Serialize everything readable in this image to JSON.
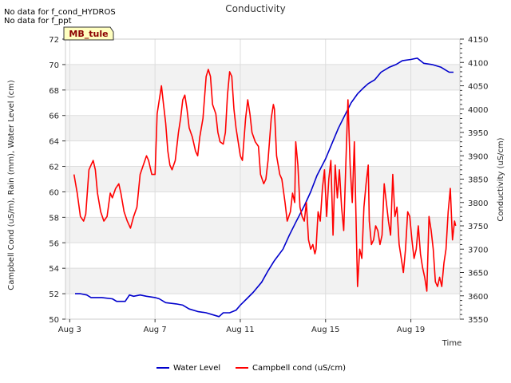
{
  "notes": [
    "No data for f_cond_HYDROS",
    "No data for f_ppt"
  ],
  "site_label": "MB_tule",
  "chart_data": {
    "type": "line",
    "title": "Conductivity",
    "xlabel": "Time",
    "ylabel_left": "Campbell Cond (uS/m), Rain (mm), Water Level (cm)",
    "ylabel_right": "Conductivity (uS/cm)",
    "xlim": [
      2.8,
      21.3
    ],
    "x_ticks": [
      {
        "x": 3,
        "label": "Aug 3"
      },
      {
        "x": 7,
        "label": "Aug 7"
      },
      {
        "x": 11,
        "label": "Aug 11"
      },
      {
        "x": 15,
        "label": "Aug 15"
      },
      {
        "x": 19,
        "label": "Aug 19"
      }
    ],
    "ylim_left": [
      50,
      72
    ],
    "y_ticks_left": [
      50,
      52,
      54,
      56,
      58,
      60,
      62,
      64,
      66,
      68,
      70,
      72
    ],
    "ylim_right": [
      3550,
      4150
    ],
    "y_ticks_right": [
      3550,
      3600,
      3650,
      3700,
      3750,
      3800,
      3850,
      3900,
      3950,
      4000,
      4050,
      4100,
      4150
    ],
    "grid": true,
    "legend_position": "bottom",
    "series": [
      {
        "name": "Water Level",
        "axis": "left",
        "color": "#0000cc",
        "points": [
          [
            3.25,
            52.0
          ],
          [
            3.5,
            52.0
          ],
          [
            3.8,
            51.9
          ],
          [
            4.0,
            51.7
          ],
          [
            4.5,
            51.7
          ],
          [
            5.0,
            51.6
          ],
          [
            5.2,
            51.4
          ],
          [
            5.6,
            51.4
          ],
          [
            5.8,
            51.9
          ],
          [
            6.0,
            51.8
          ],
          [
            6.3,
            51.9
          ],
          [
            6.6,
            51.8
          ],
          [
            7.0,
            51.7
          ],
          [
            7.2,
            51.6
          ],
          [
            7.5,
            51.3
          ],
          [
            8.0,
            51.2
          ],
          [
            8.3,
            51.1
          ],
          [
            8.6,
            50.8
          ],
          [
            9.0,
            50.6
          ],
          [
            9.4,
            50.5
          ],
          [
            9.8,
            50.3
          ],
          [
            10.0,
            50.2
          ],
          [
            10.2,
            50.5
          ],
          [
            10.5,
            50.5
          ],
          [
            10.8,
            50.7
          ],
          [
            11.0,
            51.1
          ],
          [
            11.3,
            51.6
          ],
          [
            11.6,
            52.1
          ],
          [
            12.0,
            52.9
          ],
          [
            12.3,
            53.8
          ],
          [
            12.6,
            54.6
          ],
          [
            13.0,
            55.5
          ],
          [
            13.3,
            56.6
          ],
          [
            13.6,
            57.6
          ],
          [
            14.0,
            58.9
          ],
          [
            14.3,
            60.0
          ],
          [
            14.6,
            61.3
          ],
          [
            15.0,
            62.6
          ],
          [
            15.3,
            63.8
          ],
          [
            15.6,
            65.0
          ],
          [
            15.9,
            66.0
          ],
          [
            16.2,
            67.0
          ],
          [
            16.5,
            67.7
          ],
          [
            16.8,
            68.2
          ],
          [
            17.0,
            68.5
          ],
          [
            17.3,
            68.8
          ],
          [
            17.6,
            69.4
          ],
          [
            18.0,
            69.8
          ],
          [
            18.3,
            70.0
          ],
          [
            18.6,
            70.3
          ],
          [
            19.0,
            70.4
          ],
          [
            19.3,
            70.5
          ],
          [
            19.6,
            70.1
          ],
          [
            20.0,
            70.0
          ],
          [
            20.4,
            69.8
          ],
          [
            20.6,
            69.6
          ],
          [
            20.8,
            69.4
          ],
          [
            21.0,
            69.4
          ]
        ]
      },
      {
        "name": "Campbell cond (uS/cm)",
        "axis": "right",
        "color": "#ff0000",
        "points": [
          [
            3.2,
            3860
          ],
          [
            3.35,
            3820
          ],
          [
            3.5,
            3770
          ],
          [
            3.65,
            3760
          ],
          [
            3.75,
            3775
          ],
          [
            3.9,
            3870
          ],
          [
            4.0,
            3880
          ],
          [
            4.1,
            3890
          ],
          [
            4.2,
            3870
          ],
          [
            4.3,
            3820
          ],
          [
            4.45,
            3780
          ],
          [
            4.6,
            3760
          ],
          [
            4.75,
            3770
          ],
          [
            4.9,
            3820
          ],
          [
            5.0,
            3810
          ],
          [
            5.15,
            3830
          ],
          [
            5.3,
            3840
          ],
          [
            5.4,
            3820
          ],
          [
            5.55,
            3780
          ],
          [
            5.7,
            3760
          ],
          [
            5.85,
            3745
          ],
          [
            6.0,
            3770
          ],
          [
            6.15,
            3790
          ],
          [
            6.3,
            3860
          ],
          [
            6.45,
            3880
          ],
          [
            6.6,
            3900
          ],
          [
            6.7,
            3890
          ],
          [
            6.85,
            3860
          ],
          [
            7.0,
            3860
          ],
          [
            7.1,
            3990
          ],
          [
            7.2,
            4020
          ],
          [
            7.3,
            4050
          ],
          [
            7.4,
            4010
          ],
          [
            7.5,
            3970
          ],
          [
            7.6,
            3910
          ],
          [
            7.7,
            3880
          ],
          [
            7.8,
            3870
          ],
          [
            7.95,
            3890
          ],
          [
            8.1,
            3950
          ],
          [
            8.2,
            3980
          ],
          [
            8.3,
            4020
          ],
          [
            8.4,
            4030
          ],
          [
            8.5,
            4000
          ],
          [
            8.6,
            3960
          ],
          [
            8.75,
            3940
          ],
          [
            8.9,
            3910
          ],
          [
            9.0,
            3900
          ],
          [
            9.1,
            3940
          ],
          [
            9.25,
            3980
          ],
          [
            9.4,
            4070
          ],
          [
            9.5,
            4085
          ],
          [
            9.6,
            4070
          ],
          [
            9.7,
            4010
          ],
          [
            9.85,
            3990
          ],
          [
            9.95,
            3950
          ],
          [
            10.05,
            3930
          ],
          [
            10.2,
            3925
          ],
          [
            10.3,
            3950
          ],
          [
            10.4,
            4030
          ],
          [
            10.5,
            4080
          ],
          [
            10.6,
            4070
          ],
          [
            10.7,
            4000
          ],
          [
            10.8,
            3960
          ],
          [
            10.9,
            3930
          ],
          [
            11.0,
            3900
          ],
          [
            11.1,
            3890
          ],
          [
            11.25,
            3980
          ],
          [
            11.35,
            4020
          ],
          [
            11.45,
            3990
          ],
          [
            11.55,
            3950
          ],
          [
            11.7,
            3930
          ],
          [
            11.85,
            3920
          ],
          [
            11.95,
            3860
          ],
          [
            12.1,
            3840
          ],
          [
            12.2,
            3850
          ],
          [
            12.3,
            3890
          ],
          [
            12.45,
            3980
          ],
          [
            12.55,
            4010
          ],
          [
            12.6,
            4000
          ],
          [
            12.7,
            3900
          ],
          [
            12.85,
            3860
          ],
          [
            12.95,
            3850
          ],
          [
            13.1,
            3800
          ],
          [
            13.2,
            3760
          ],
          [
            13.35,
            3780
          ],
          [
            13.45,
            3820
          ],
          [
            13.55,
            3800
          ],
          [
            13.6,
            3930
          ],
          [
            13.7,
            3880
          ],
          [
            13.8,
            3790
          ],
          [
            13.9,
            3770
          ],
          [
            14.0,
            3760
          ],
          [
            14.1,
            3800
          ],
          [
            14.2,
            3720
          ],
          [
            14.3,
            3700
          ],
          [
            14.4,
            3710
          ],
          [
            14.5,
            3690
          ],
          [
            14.55,
            3700
          ],
          [
            14.65,
            3780
          ],
          [
            14.75,
            3760
          ],
          [
            14.85,
            3830
          ],
          [
            14.95,
            3870
          ],
          [
            15.05,
            3770
          ],
          [
            15.15,
            3850
          ],
          [
            15.25,
            3890
          ],
          [
            15.35,
            3730
          ],
          [
            15.45,
            3880
          ],
          [
            15.55,
            3810
          ],
          [
            15.65,
            3870
          ],
          [
            15.75,
            3790
          ],
          [
            15.85,
            3740
          ],
          [
            15.95,
            3880
          ],
          [
            16.05,
            4020
          ],
          [
            16.15,
            3880
          ],
          [
            16.25,
            3800
          ],
          [
            16.35,
            3930
          ],
          [
            16.45,
            3720
          ],
          [
            16.5,
            3620
          ],
          [
            16.6,
            3700
          ],
          [
            16.7,
            3680
          ],
          [
            16.8,
            3790
          ],
          [
            16.9,
            3840
          ],
          [
            17.0,
            3880
          ],
          [
            17.05,
            3760
          ],
          [
            17.15,
            3710
          ],
          [
            17.25,
            3720
          ],
          [
            17.35,
            3750
          ],
          [
            17.45,
            3740
          ],
          [
            17.55,
            3710
          ],
          [
            17.65,
            3730
          ],
          [
            17.75,
            3840
          ],
          [
            17.85,
            3800
          ],
          [
            17.95,
            3760
          ],
          [
            18.05,
            3730
          ],
          [
            18.15,
            3860
          ],
          [
            18.25,
            3770
          ],
          [
            18.35,
            3790
          ],
          [
            18.45,
            3710
          ],
          [
            18.55,
            3680
          ],
          [
            18.65,
            3650
          ],
          [
            18.75,
            3700
          ],
          [
            18.85,
            3780
          ],
          [
            18.95,
            3770
          ],
          [
            19.05,
            3720
          ],
          [
            19.15,
            3680
          ],
          [
            19.25,
            3700
          ],
          [
            19.35,
            3750
          ],
          [
            19.45,
            3690
          ],
          [
            19.55,
            3660
          ],
          [
            19.65,
            3640
          ],
          [
            19.75,
            3610
          ],
          [
            19.85,
            3770
          ],
          [
            19.95,
            3740
          ],
          [
            20.05,
            3700
          ],
          [
            20.15,
            3630
          ],
          [
            20.25,
            3620
          ],
          [
            20.35,
            3640
          ],
          [
            20.45,
            3620
          ],
          [
            20.55,
            3670
          ],
          [
            20.65,
            3700
          ],
          [
            20.75,
            3780
          ],
          [
            20.85,
            3830
          ],
          [
            20.95,
            3720
          ],
          [
            21.05,
            3760
          ],
          [
            21.1,
            3750
          ]
        ]
      }
    ]
  }
}
